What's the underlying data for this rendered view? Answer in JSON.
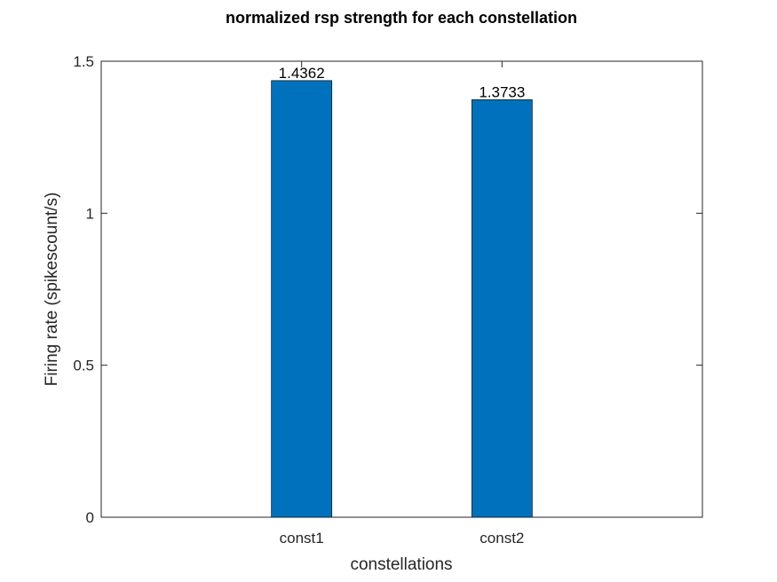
{
  "chart_data": {
    "type": "bar",
    "title": "normalized rsp strength for each constellation",
    "xlabel": "constellations",
    "ylabel": "Firing rate (spikescount/s)",
    "categories": [
      "const1",
      "const2"
    ],
    "values": [
      1.4362,
      1.3733
    ],
    "data_labels": [
      "1.4362",
      "1.3733"
    ],
    "ylim": [
      0,
      1.5
    ],
    "yticks": [
      0,
      0.5,
      1,
      1.5
    ],
    "ytick_labels": [
      "0",
      "0.5",
      "1",
      "1.5"
    ],
    "bar_color": "#0072BD",
    "grid": false,
    "legend": "none"
  }
}
